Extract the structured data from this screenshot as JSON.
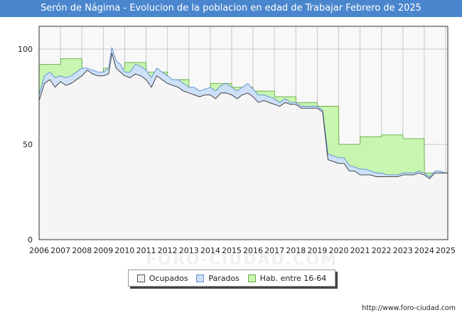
{
  "chart_data": {
    "type": "area",
    "title": "Serón de Nágima - Evolucion de la poblacion en edad de Trabajar Febrero de 2025",
    "xlabel": "",
    "ylabel": "",
    "xlim": [
      2006,
      2025.1
    ],
    "ylim": [
      0,
      112
    ],
    "yticks": [
      0,
      50,
      100
    ],
    "xticks": [
      2006,
      2007,
      2008,
      2009,
      2010,
      2011,
      2012,
      2013,
      2014,
      2015,
      2016,
      2017,
      2018,
      2019,
      2020,
      2021,
      2022,
      2023,
      2024,
      2025
    ],
    "grid": true,
    "legend_position": "bottom",
    "watermark": "FORO-CIUDAD.COM",
    "series": [
      {
        "name": "Ocupados",
        "color": "#f5f5f5",
        "edge": "#333333",
        "x": [
          2006,
          2006.25,
          2006.5,
          2006.75,
          2007,
          2007.25,
          2007.5,
          2007.75,
          2008,
          2008.25,
          2008.5,
          2008.75,
          2009,
          2009.25,
          2009.4,
          2009.6,
          2009.8,
          2010,
          2010.25,
          2010.5,
          2010.75,
          2011,
          2011.25,
          2011.5,
          2011.75,
          2012,
          2012.25,
          2012.5,
          2012.75,
          2013,
          2013.25,
          2013.5,
          2013.75,
          2014,
          2014.25,
          2014.5,
          2014.75,
          2015,
          2015.25,
          2015.5,
          2015.75,
          2016,
          2016.25,
          2016.5,
          2016.75,
          2017,
          2017.25,
          2017.5,
          2017.75,
          2018,
          2018.25,
          2018.5,
          2018.75,
          2019,
          2019.25,
          2019.5,
          2019.75,
          2020,
          2020.25,
          2020.5,
          2020.75,
          2021,
          2021.25,
          2021.5,
          2021.75,
          2022,
          2022.25,
          2022.5,
          2022.75,
          2023,
          2023.25,
          2023.5,
          2023.75,
          2024,
          2024.25,
          2024.5,
          2024.75,
          2025,
          2025.1
        ],
        "values": [
          73,
          82,
          84,
          80,
          83,
          81,
          82,
          84,
          86,
          89,
          87,
          86,
          86,
          87,
          98,
          90,
          88,
          86,
          85,
          87,
          86,
          84,
          80,
          86,
          84,
          82,
          81,
          80,
          78,
          77,
          76,
          75,
          76,
          76,
          74,
          77,
          77,
          76,
          74,
          76,
          77,
          75,
          72,
          73,
          72,
          71,
          70,
          72,
          71,
          71,
          69,
          69,
          69,
          69,
          67,
          42,
          41,
          40,
          40,
          36,
          36,
          34,
          34,
          34,
          33,
          33,
          33,
          33,
          33,
          34,
          34,
          34,
          35,
          34,
          32,
          35,
          35,
          35,
          35
        ]
      },
      {
        "name": "Parados",
        "color": "#cde0f7",
        "edge": "#5b8fd1",
        "x": [
          2006,
          2006.25,
          2006.5,
          2006.75,
          2007,
          2007.25,
          2007.5,
          2007.75,
          2008,
          2008.25,
          2008.5,
          2008.75,
          2009,
          2009.25,
          2009.4,
          2009.6,
          2009.8,
          2010,
          2010.25,
          2010.5,
          2010.75,
          2011,
          2011.25,
          2011.5,
          2011.75,
          2012,
          2012.25,
          2012.5,
          2012.75,
          2013,
          2013.25,
          2013.5,
          2013.75,
          2014,
          2014.25,
          2014.5,
          2014.75,
          2015,
          2015.25,
          2015.5,
          2015.75,
          2016,
          2016.25,
          2016.5,
          2016.75,
          2017,
          2017.25,
          2017.5,
          2017.75,
          2018,
          2018.25,
          2018.5,
          2018.75,
          2019,
          2019.25,
          2019.5,
          2019.75,
          2020,
          2020.25,
          2020.5,
          2020.75,
          2021,
          2021.25,
          2021.5,
          2021.75,
          2022,
          2022.25,
          2022.5,
          2022.75,
          2023,
          2023.25,
          2023.5,
          2023.75,
          2024,
          2024.25,
          2024.5,
          2024.75,
          2025,
          2025.1
        ],
        "values": [
          76,
          86,
          88,
          85,
          86,
          85,
          86,
          88,
          90,
          90,
          89,
          88,
          88,
          90,
          101,
          94,
          92,
          88,
          88,
          92,
          91,
          89,
          85,
          90,
          88,
          86,
          84,
          84,
          82,
          80,
          80,
          78,
          79,
          80,
          78,
          81,
          82,
          80,
          78,
          80,
          82,
          79,
          76,
          76,
          75,
          74,
          72,
          74,
          72,
          72,
          70,
          70,
          70,
          70,
          68,
          45,
          44,
          43,
          43,
          39,
          38,
          37,
          37,
          36,
          35,
          35,
          34,
          34,
          34,
          35,
          35,
          35,
          36,
          35,
          33,
          36,
          36,
          35,
          35
        ]
      },
      {
        "name": "Hab. entre 16-64",
        "color": "#c8f5b0",
        "edge": "#66aa44",
        "x": [
          2006,
          2007,
          2007.01,
          2008,
          2008.01,
          2009,
          2009.01,
          2010,
          2010.01,
          2011,
          2011.01,
          2012,
          2012.01,
          2013,
          2013.01,
          2014,
          2014.01,
          2015,
          2015.01,
          2016,
          2016.01,
          2017,
          2017.01,
          2018,
          2018.01,
          2019,
          2019.01,
          2020,
          2020.01,
          2021,
          2021.01,
          2022,
          2022.01,
          2023,
          2023.01,
          2024,
          2024.01,
          2025,
          2025.1
        ],
        "values": [
          92,
          92,
          95,
          95,
          87,
          87,
          90,
          90,
          93,
          93,
          88,
          88,
          84,
          84,
          78,
          78,
          82,
          82,
          80,
          80,
          78,
          78,
          75,
          75,
          72,
          72,
          70,
          70,
          50,
          50,
          54,
          54,
          55,
          55,
          53,
          53,
          35,
          35,
          35
        ]
      }
    ]
  },
  "source_label": "http://www.foro-ciudad.com"
}
